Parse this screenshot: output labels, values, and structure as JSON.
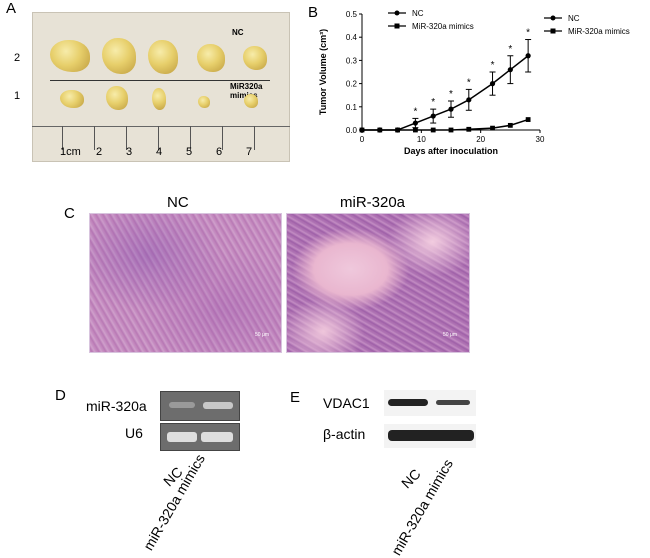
{
  "panels": {
    "a": {
      "letter": "A",
      "row_labels": [
        "2",
        "1"
      ],
      "photo_labels": {
        "top": "NC",
        "bottom": "MiR320a mimics"
      },
      "ruler_labels": [
        "1cm",
        "2",
        "3",
        "4",
        "5",
        "6",
        "7"
      ]
    },
    "b": {
      "letter": "B"
    },
    "c": {
      "letter": "C",
      "left_title": "NC",
      "right_title": "miR-320a",
      "scale_label": "50 μm"
    },
    "d": {
      "letter": "D",
      "row_labels": [
        "miR-320a",
        "U6"
      ],
      "lane_labels": [
        "NC",
        "miR-320a mimics"
      ]
    },
    "e": {
      "letter": "E",
      "row_labels": [
        "VDAC1",
        "β-actin"
      ],
      "lane_labels": [
        "NC",
        "miR-320a mimics"
      ]
    }
  },
  "chart_data": {
    "type": "line",
    "xlabel": "Days after inoculation",
    "ylabel": "Tumor Volume",
    "ylabel_unit": "(cm³)",
    "xlim": [
      0,
      30
    ],
    "ylim": [
      0,
      0.5
    ],
    "xticks": [
      0,
      10,
      20,
      30
    ],
    "yticks": [
      0.0,
      0.1,
      0.2,
      0.3,
      0.4,
      0.5
    ],
    "x": [
      0,
      3,
      6,
      9,
      12,
      15,
      18,
      22,
      25,
      28
    ],
    "series": [
      {
        "name": "NC",
        "marker": "circle",
        "values": [
          0,
          0,
          0,
          0.03,
          0.06,
          0.09,
          0.13,
          0.2,
          0.26,
          0.32
        ],
        "errors": [
          0,
          0,
          0,
          0.02,
          0.03,
          0.035,
          0.045,
          0.05,
          0.06,
          0.07
        ]
      },
      {
        "name": "MiR-320a mimics",
        "marker": "square",
        "values": [
          0,
          0,
          0,
          0,
          0,
          0,
          0.003,
          0.008,
          0.02,
          0.045
        ],
        "errors": [
          0,
          0,
          0,
          0,
          0,
          0,
          0,
          0,
          0,
          0
        ]
      }
    ],
    "significance_marks": [
      {
        "x": 9,
        "label": "*"
      },
      {
        "x": 12,
        "label": "*"
      },
      {
        "x": 15,
        "label": "*"
      },
      {
        "x": 18,
        "label": "*"
      },
      {
        "x": 22,
        "label": "*"
      },
      {
        "x": 25,
        "label": "*"
      },
      {
        "x": 28,
        "label": "*"
      }
    ],
    "legend_placement": "top-left and top-right"
  }
}
